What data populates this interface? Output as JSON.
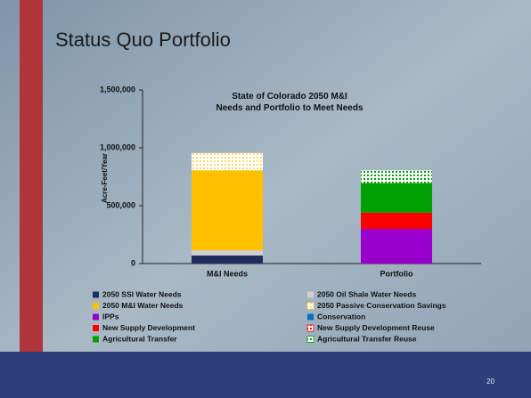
{
  "slide_title": "Status Quo Portfolio",
  "page_number": "20",
  "chart_data": {
    "type": "stacked_bar",
    "title": "State of Colorado 2050 M&I Needs and Portfolio to Meet Needs",
    "y_label": "Acre-Feet/Year",
    "categories": [
      "M&I Needs",
      "Portfolio"
    ],
    "ylim": [
      0,
      1500000
    ],
    "yticks": [
      0,
      {
        "value": 500000,
        "label": "500,000"
      },
      {
        "value": 1000000,
        "label": "1,000,000"
      },
      {
        "value": 1500000,
        "label": "1,500,000"
      }
    ],
    "series": [
      {
        "name": "2050 SSI Water Needs",
        "color": "#1f2d5c",
        "values": [
          70000,
          0
        ]
      },
      {
        "name": "2050 Oil Shale Water Needs",
        "color": "#d0d0d0",
        "values": [
          45000,
          0
        ]
      },
      {
        "name": "2050 M&I Water Needs",
        "color": "#ffc000",
        "values": [
          690000,
          0
        ]
      },
      {
        "name": "2050 Passive Conservation Savings",
        "color": "#ffd966",
        "hatch": true,
        "values": [
          150000,
          0
        ]
      },
      {
        "name": "IPPs",
        "color": "#9900cc",
        "values": [
          0,
          300000
        ]
      },
      {
        "name": "Conservation",
        "color": "#0070c0",
        "values": [
          0,
          0
        ]
      },
      {
        "name": "New Supply Development",
        "color": "#ff0000",
        "values": [
          0,
          140000
        ]
      },
      {
        "name": "New Supply Development Reuse",
        "color": "#ff0000",
        "hatch": true,
        "values": [
          0,
          0
        ]
      },
      {
        "name": "Agricultural Transfer",
        "color": "#00a000",
        "values": [
          0,
          255000
        ]
      },
      {
        "name": "Agricultural Transfer Reuse",
        "color": "#00a000",
        "hatch": true,
        "values": [
          0,
          110000
        ]
      }
    ]
  }
}
